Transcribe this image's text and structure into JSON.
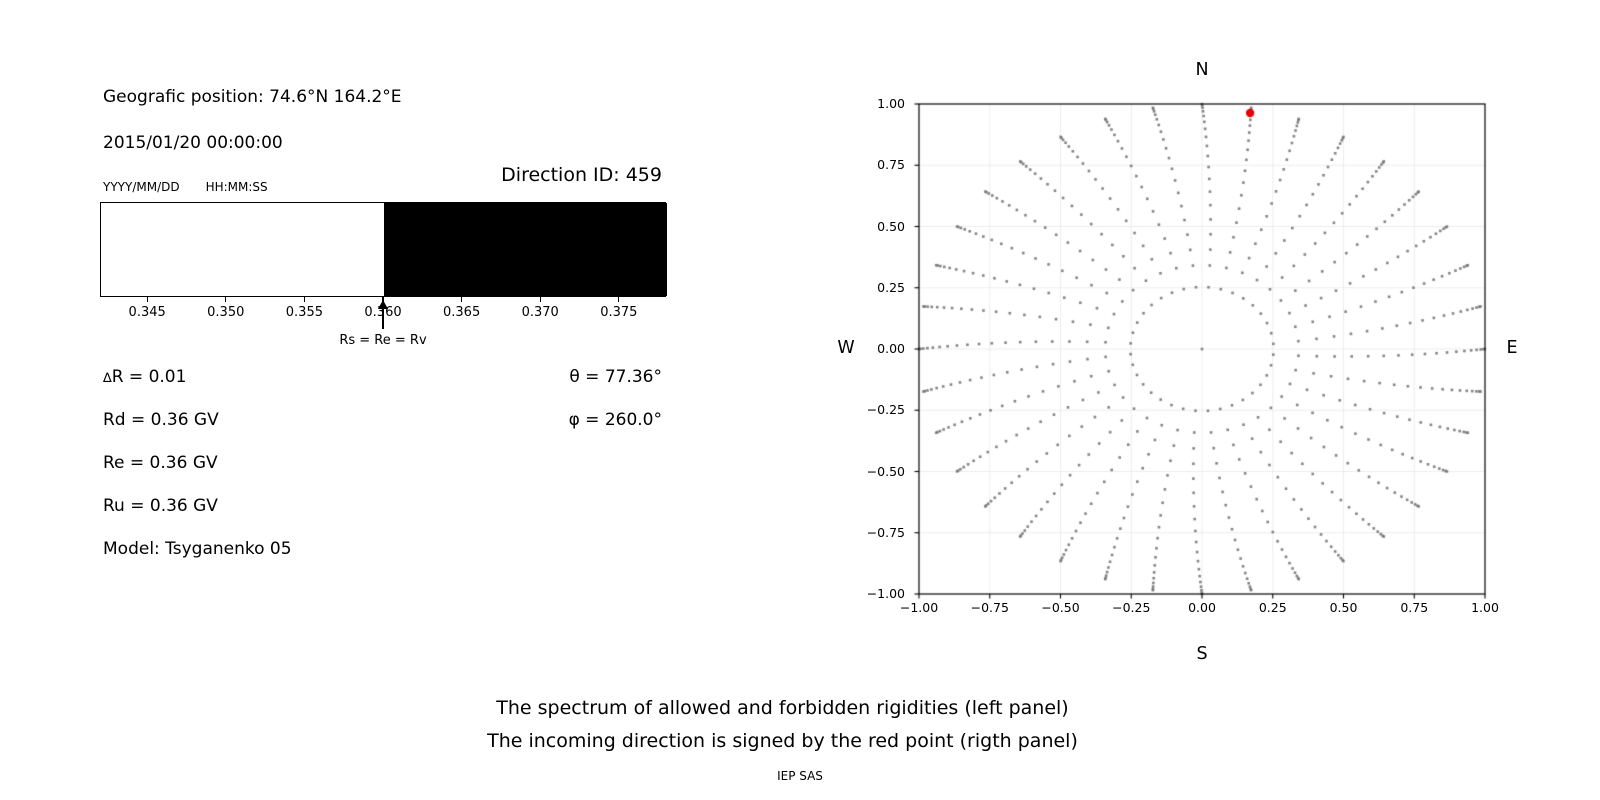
{
  "header": {
    "geo_position": "Geografic position: 74.6°N 164.2°E",
    "datetime": "2015/01/20 00:00:00",
    "date_format_label": "YYYY/MM/DD",
    "time_format_label": "HH:MM:SS",
    "direction_id": "Direction ID: 459"
  },
  "params": {
    "rows_left": [
      {
        "sym": "∆",
        "text": "R = 0.01"
      },
      {
        "sym": "",
        "text": "Rd = 0.36 GV"
      },
      {
        "sym": "",
        "text": "Re = 0.36 GV"
      },
      {
        "sym": "",
        "text": "Ru = 0.36 GV"
      },
      {
        "sym": "",
        "text": "Model: Tsyganenko 05"
      }
    ],
    "rows_right": [
      "θ = 77.36°",
      "φ = 260.0°"
    ]
  },
  "footer": {
    "line1": "The spectrum of allowed and forbidden rigidities (left panel)",
    "line2": "The incoming direction is signed by the red point (rigth panel)",
    "credit": "IEP SAS"
  },
  "chart_data": [
    {
      "type": "bar",
      "panel": "left",
      "description": "Rigidity spectrum strip: white = allowed rigidities, black = forbidden rigidities",
      "xlim": [
        0.342,
        0.378
      ],
      "tick_values": [
        0.345,
        0.35,
        0.355,
        0.36,
        0.365,
        0.37,
        0.375
      ],
      "tick_labels": [
        "0.345",
        "0.350",
        "0.355",
        "0.360",
        "0.365",
        "0.370",
        "0.375"
      ],
      "segments": [
        {
          "from": 0.342,
          "to": 0.36,
          "color": "#ffffff",
          "meaning": "allowed"
        },
        {
          "from": 0.36,
          "to": 0.378,
          "color": "#000000",
          "meaning": "forbidden"
        }
      ],
      "marker": {
        "value": 0.36,
        "label": "Rs = Re = Rv"
      }
    },
    {
      "type": "scatter",
      "panel": "right",
      "compass_labels": {
        "top": "N",
        "bottom": "S",
        "left": "W",
        "right": "E"
      },
      "xlim": [
        -1,
        1
      ],
      "ylim": [
        -1,
        1
      ],
      "tick_values": [
        -1,
        -0.75,
        -0.5,
        -0.25,
        0,
        0.25,
        0.5,
        0.75,
        1
      ],
      "tick_labels": [
        "−1.00",
        "−0.75",
        "−0.50",
        "−0.25",
        "0.00",
        "0.25",
        "0.50",
        "0.75",
        "1.00"
      ],
      "grid": true,
      "grid_step": 0.25,
      "grid_color": "#ededed",
      "direction_grid": {
        "description": "grid of incoming directions: 36 azimuth spokes every 10°; dot radius = sin(zenith); dots cluster toward rim; slight clockwise spiral toward centre",
        "azimuth_count": 36,
        "azimuth_step_deg": 10,
        "zenith_deg": [
          20,
          24,
          28,
          32,
          36,
          40,
          44,
          48,
          52,
          56,
          60,
          64,
          68,
          72,
          76,
          80,
          84,
          88
        ],
        "radius_rule": "r = sin(zenith)",
        "spiral_deg": 7,
        "inner_ring": {
          "radius": 0.253,
          "count": 36
        },
        "center_dot": true,
        "dot_color": "#737373",
        "dot_size_px": 2.6
      },
      "red_point": {
        "x": 0.17,
        "y": 0.963,
        "color": "#e8000b",
        "radius_px": 4.2
      }
    }
  ]
}
